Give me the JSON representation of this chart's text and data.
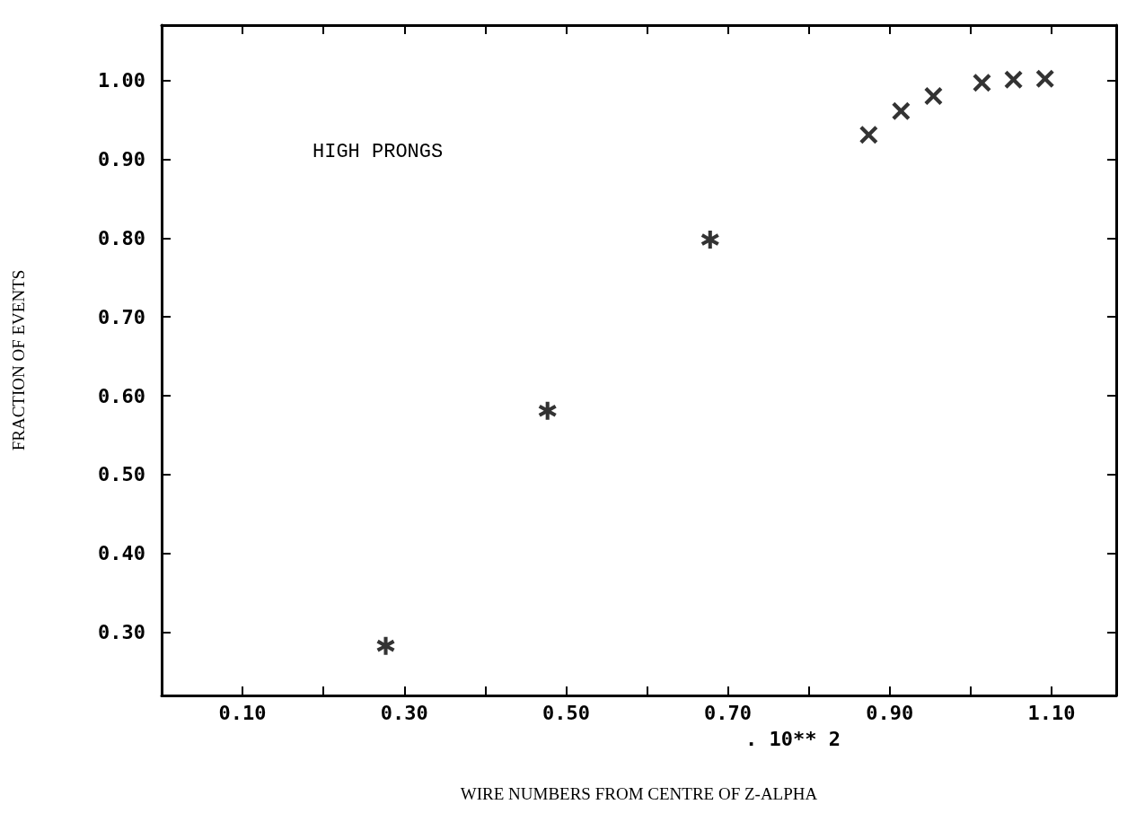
{
  "chart_data": {
    "type": "scatter",
    "xlabel": "WIRE NUMBERS FROM CENTRE OF Z-ALPHA",
    "ylabel": "FRACTION OF EVENTS",
    "annotations": [
      "HIGH PRONGS",
      ". 10** 2"
    ],
    "series": [
      {
        "color": "#000000",
        "marker": "star",
        "x": [
          0.277,
          0.477,
          0.678
        ],
        "values": [
          0.283,
          0.581,
          0.798
        ]
      },
      {
        "color": "#000000",
        "marker": "cross",
        "x": [
          0.874,
          0.914,
          0.954,
          1.014,
          1.053,
          1.092
        ],
        "values": [
          0.931,
          0.961,
          0.98,
          0.997,
          1.001,
          1.002
        ]
      }
    ],
    "xlim": [
      0.0,
      1.18
    ],
    "xticks": [
      {
        "value": 0.1,
        "label": "0.10"
      },
      {
        "value": 0.2,
        "label": null
      },
      {
        "value": 0.3,
        "label": "0.30"
      },
      {
        "value": 0.4,
        "label": null
      },
      {
        "value": 0.5,
        "label": "0.50"
      },
      {
        "value": 0.6,
        "label": null
      },
      {
        "value": 0.7,
        "label": "0.70"
      },
      {
        "value": 0.8,
        "label": null
      },
      {
        "value": 0.9,
        "label": "0.90"
      },
      {
        "value": 1.0,
        "label": null
      },
      {
        "value": 1.1,
        "label": "1.10"
      }
    ],
    "ylim": [
      0.22,
      1.07
    ],
    "yticks": [
      {
        "value": 0.3,
        "label": "0.30"
      },
      {
        "value": 0.4,
        "label": "0.40"
      },
      {
        "value": 0.5,
        "label": "0.50"
      },
      {
        "value": 0.6,
        "label": "0.60"
      },
      {
        "value": 0.7,
        "label": "0.70"
      },
      {
        "value": 0.8,
        "label": "0.80"
      },
      {
        "value": 0.9,
        "label": "0.90"
      },
      {
        "value": 1.0,
        "label": "1.00"
      }
    ],
    "grid": false
  }
}
